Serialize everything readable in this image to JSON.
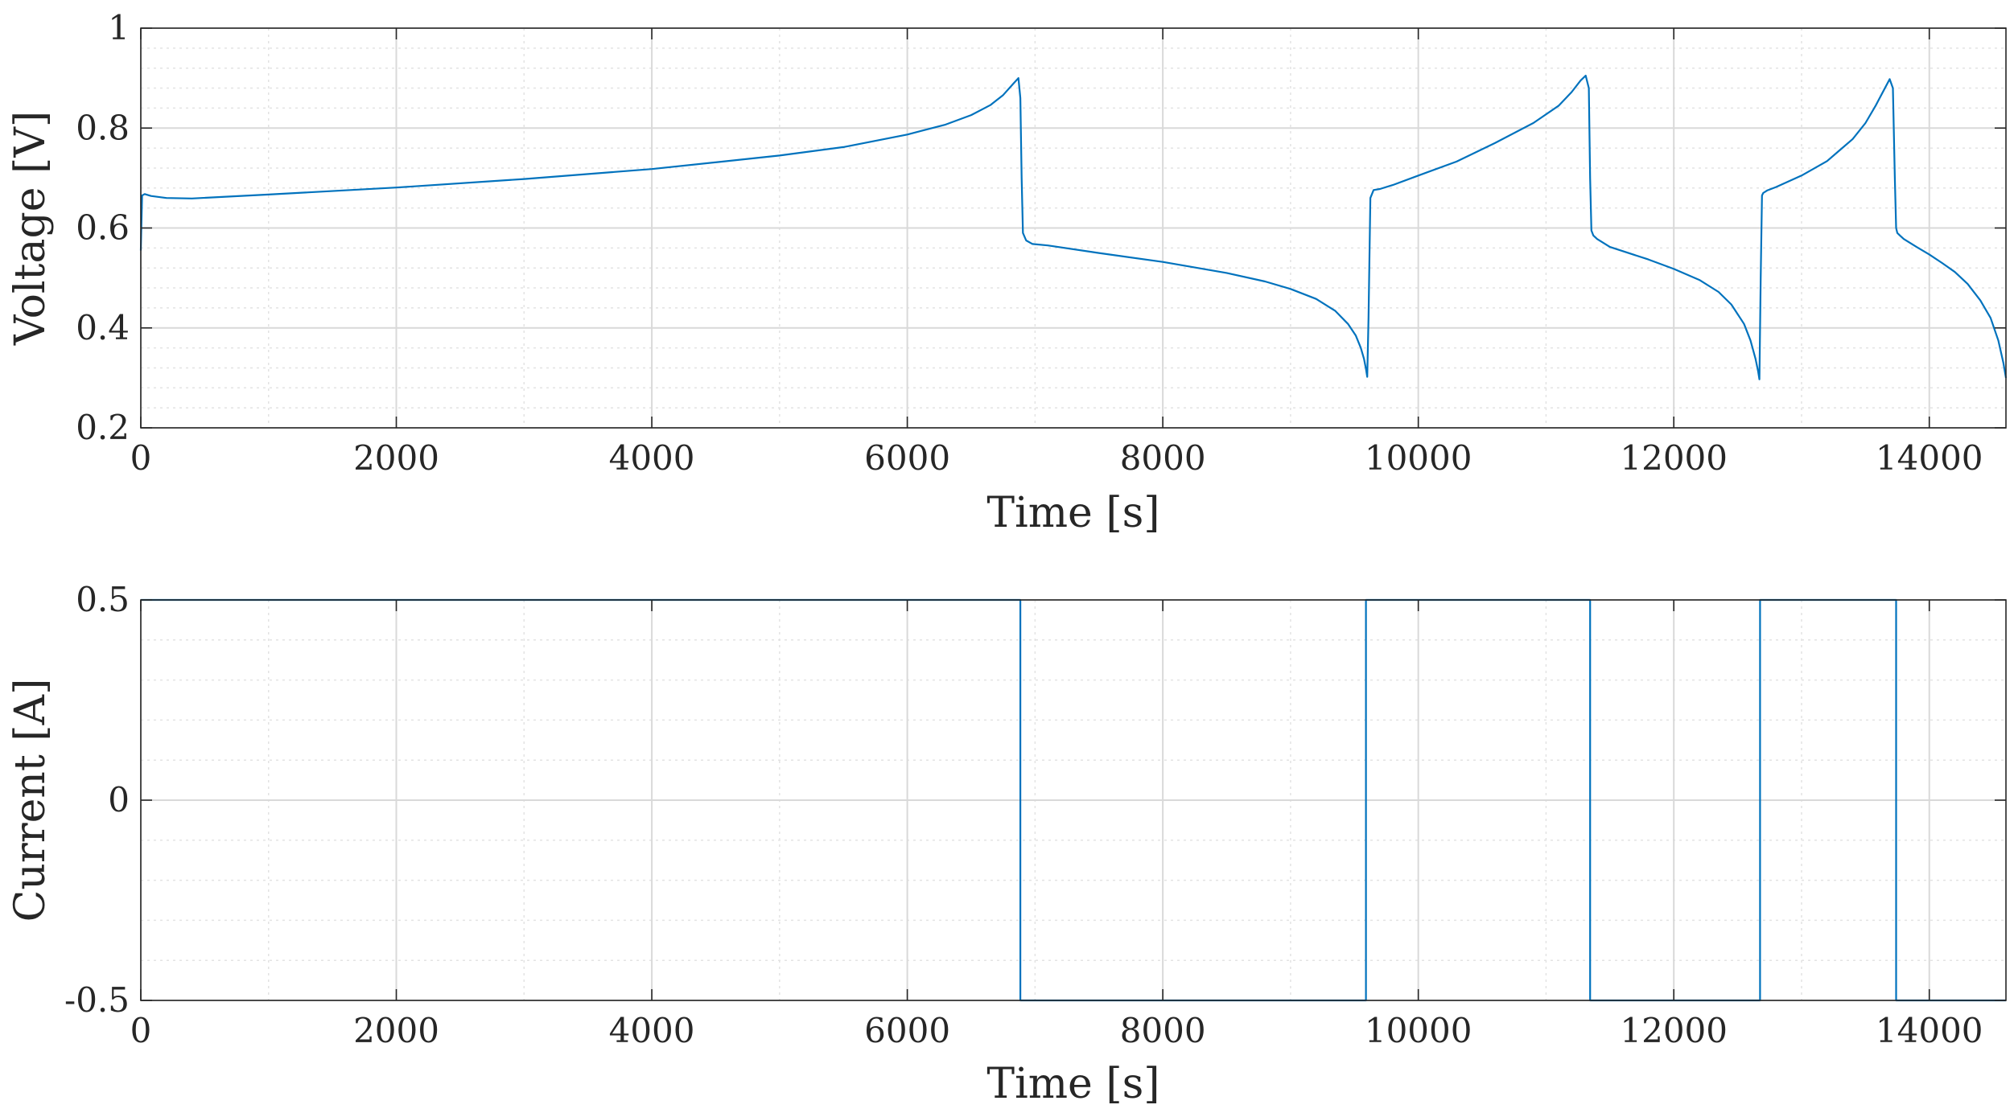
{
  "chart_data": [
    {
      "type": "line",
      "xlabel": "Time [s]",
      "ylabel": "Voltage [V]",
      "xlim": [
        0,
        14600
      ],
      "ylim": [
        0.2,
        1.0
      ],
      "xticks": [
        0,
        2000,
        4000,
        6000,
        8000,
        10000,
        12000,
        14000
      ],
      "xtick_labels": [
        "0",
        "2000",
        "4000",
        "6000",
        "8000",
        "10000",
        "12000",
        "14000"
      ],
      "yticks": [
        0.2,
        0.4,
        0.6,
        0.8,
        1.0
      ],
      "ytick_labels": [
        "0.2",
        "0.4",
        "0.6",
        "0.8",
        "1"
      ],
      "grid": true,
      "minor_grid": true,
      "color": "#0072BD",
      "series": [
        {
          "x": [
            0,
            10,
            30,
            80,
            200,
            400,
            1000,
            2000,
            3000,
            4000,
            5000,
            5500,
            6000,
            6300,
            6500,
            6650,
            6750,
            6830,
            6870,
            6885,
            6895,
            6905,
            6930,
            6980,
            7100,
            7500,
            8000,
            8500,
            8800,
            9000,
            9200,
            9350,
            9450,
            9510,
            9550,
            9575,
            9590,
            9600,
            9610,
            9625,
            9650,
            9700,
            9800,
            10000,
            10300,
            10600,
            10900,
            11100,
            11200,
            11270,
            11310,
            11335,
            11345,
            11355,
            11370,
            11400,
            11500,
            11800,
            12000,
            12200,
            12350,
            12450,
            12550,
            12600,
            12640,
            12660,
            12670,
            12680,
            12690,
            12700,
            12730,
            12800,
            13000,
            13200,
            13400,
            13500,
            13580,
            13640,
            13690,
            13715,
            13730,
            13740,
            13750,
            13770,
            13800,
            13900,
            14000,
            14100,
            14200,
            14300,
            14400,
            14480,
            14540,
            14580,
            14600
          ],
          "y": [
            0.555,
            0.665,
            0.668,
            0.664,
            0.66,
            0.659,
            0.667,
            0.681,
            0.698,
            0.718,
            0.745,
            0.762,
            0.787,
            0.807,
            0.826,
            0.846,
            0.866,
            0.889,
            0.9,
            0.86,
            0.7,
            0.59,
            0.575,
            0.568,
            0.565,
            0.55,
            0.532,
            0.51,
            0.493,
            0.478,
            0.458,
            0.434,
            0.408,
            0.385,
            0.36,
            0.338,
            0.318,
            0.302,
            0.42,
            0.66,
            0.676,
            0.678,
            0.686,
            0.705,
            0.733,
            0.77,
            0.81,
            0.845,
            0.872,
            0.895,
            0.905,
            0.88,
            0.7,
            0.595,
            0.585,
            0.578,
            0.562,
            0.537,
            0.518,
            0.496,
            0.472,
            0.447,
            0.408,
            0.375,
            0.338,
            0.313,
            0.297,
            0.5,
            0.665,
            0.67,
            0.675,
            0.682,
            0.705,
            0.734,
            0.778,
            0.81,
            0.845,
            0.874,
            0.898,
            0.88,
            0.7,
            0.6,
            0.59,
            0.585,
            0.578,
            0.562,
            0.547,
            0.53,
            0.512,
            0.488,
            0.455,
            0.42,
            0.375,
            0.33,
            0.3
          ]
        }
      ]
    },
    {
      "type": "line",
      "xlabel": "Time [s]",
      "ylabel": "Current [A]",
      "xlim": [
        0,
        14600
      ],
      "ylim": [
        -0.5,
        0.5
      ],
      "xticks": [
        0,
        2000,
        4000,
        6000,
        8000,
        10000,
        12000,
        14000
      ],
      "xtick_labels": [
        "0",
        "2000",
        "4000",
        "6000",
        "8000",
        "10000",
        "12000",
        "14000"
      ],
      "yticks": [
        -0.5,
        0,
        0.5
      ],
      "ytick_labels": [
        "-0.5",
        "0",
        "0.5"
      ],
      "grid": true,
      "minor_grid": true,
      "color": "#0072BD",
      "series": [
        {
          "x": [
            0,
            6885,
            6885,
            9590,
            9590,
            11345,
            11345,
            12675,
            12675,
            13740,
            13740,
            14600
          ],
          "y": [
            0.5,
            0.5,
            -0.5,
            -0.5,
            0.5,
            0.5,
            -0.5,
            -0.5,
            0.5,
            0.5,
            -0.5,
            -0.5
          ]
        }
      ]
    }
  ]
}
